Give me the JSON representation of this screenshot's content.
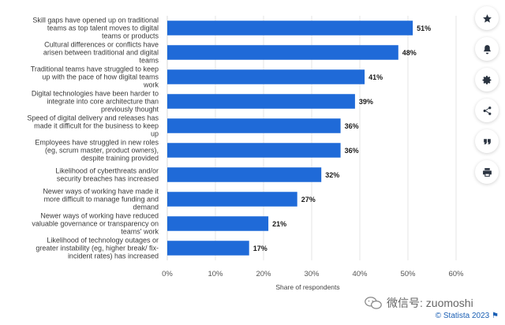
{
  "chart_data": {
    "type": "bar",
    "orientation": "horizontal",
    "categories": [
      "Skill gaps have opened up on traditional teams as top talent moves to digital teams or products",
      "Cultural differences or conflicts have arisen between traditional and digital teams",
      "Traditional teams have struggled to keep up with the pace of how digital teams work",
      "Digital technologies have been harder to integrate into core architecture than previously thought",
      "Speed of digital delivery and releases has made it difficult for the business to keep up",
      "Employees have struggled in new roles (eg, scrum master, product owners), despite training provided",
      "Likelihood of cyberthreats and/or security breaches has increased",
      "Newer ways of working have made it more difficult to manage funding and demand",
      "Newer ways of working have reduced valuable governance or transparency on teams' work",
      "Likelihood of technology outages or greater instability (eg, higher break/ fix-incident rates) has increased"
    ],
    "category_lines": [
      [
        "Skill gaps have opened up on traditional",
        "teams as top talent moves to digital",
        "teams or products"
      ],
      [
        "Cultural differences or conflicts have",
        "arisen between traditional and digital",
        "teams"
      ],
      [
        "Traditional teams have struggled to keep",
        "up with the pace of how digital teams",
        "work"
      ],
      [
        "Digital technologies have been harder to",
        "integrate into core architecture than",
        "previously thought"
      ],
      [
        "Speed of digital delivery and releases has",
        "made it difficult for the business to keep",
        "up"
      ],
      [
        "Employees have struggled in new roles",
        "(eg, scrum master, product owners),",
        "despite training provided"
      ],
      [
        "Likelihood of cyberthreats and/or",
        "security breaches has increased"
      ],
      [
        "Newer ways of working have made it",
        "more difficult to manage funding and",
        "demand"
      ],
      [
        "Newer ways of working have reduced",
        "valuable governance or transparency on",
        "teams' work"
      ],
      [
        "Likelihood of technology outages or",
        "greater instability (eg, higher break/ fix-",
        "incident rates) has increased"
      ]
    ],
    "values": [
      51,
      48,
      41,
      39,
      36,
      36,
      32,
      27,
      21,
      17
    ],
    "value_labels": [
      "51%",
      "48%",
      "41%",
      "39%",
      "36%",
      "36%",
      "32%",
      "27%",
      "21%",
      "17%"
    ],
    "xlim": [
      0,
      60
    ],
    "xticks": [
      0,
      10,
      20,
      30,
      40,
      50,
      60
    ],
    "xtick_labels": [
      "0%",
      "10%",
      "20%",
      "30%",
      "40%",
      "50%",
      "60%"
    ],
    "xlabel": "Share of respondents",
    "ylabel": "",
    "grid": true,
    "bar_color": "#1f6ad8"
  },
  "toolbar": {
    "buttons": [
      {
        "name": "star-icon"
      },
      {
        "name": "bell-icon"
      },
      {
        "name": "gear-icon"
      },
      {
        "name": "share-icon"
      },
      {
        "name": "quote-icon"
      },
      {
        "name": "print-icon"
      }
    ]
  },
  "watermark": {
    "text": "微信号: zuomoshi"
  },
  "credit": {
    "text": "© Statista 2023"
  }
}
